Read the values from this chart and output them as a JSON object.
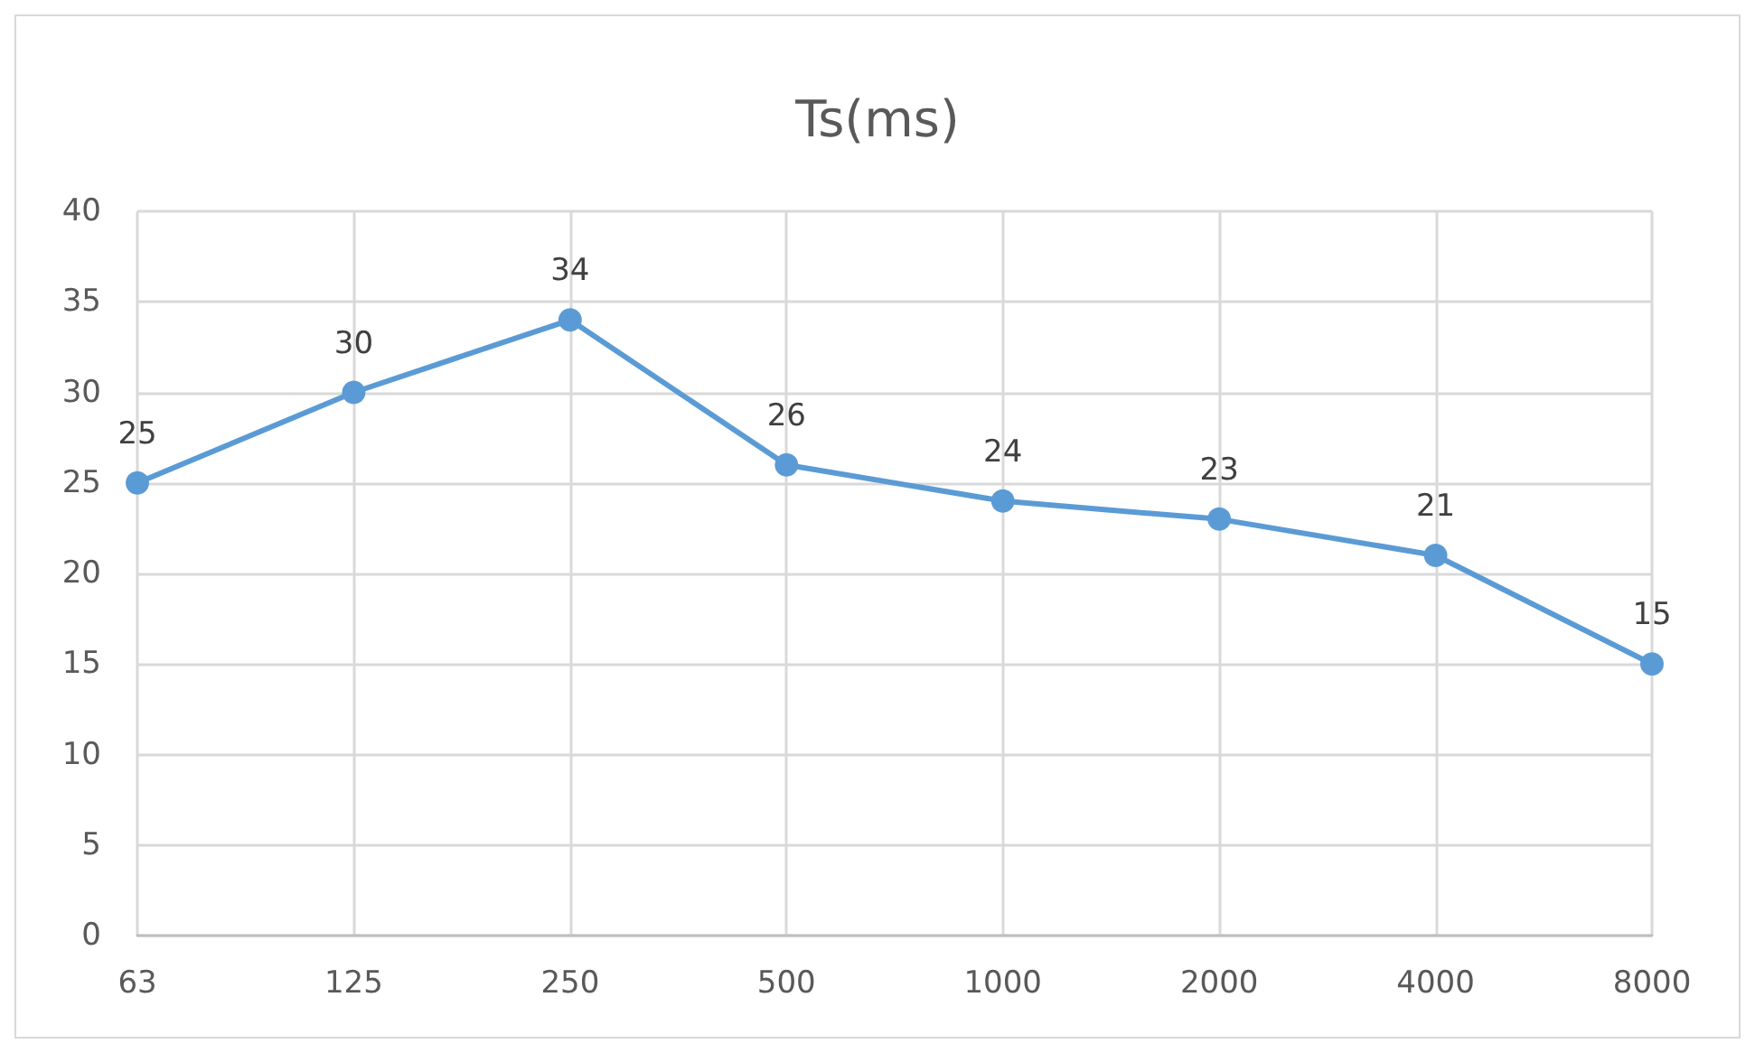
{
  "chart_data": {
    "type": "line",
    "title": "Ts(ms)",
    "categories": [
      "63",
      "125",
      "250",
      "500",
      "1000",
      "2000",
      "4000",
      "8000"
    ],
    "values": [
      25,
      30,
      34,
      26,
      24,
      23,
      21,
      15
    ],
    "color": "#5b9bd5",
    "ylim": [
      0,
      40
    ],
    "yticks": [
      0,
      5,
      10,
      15,
      20,
      25,
      30,
      35,
      40
    ],
    "grid": true,
    "marker": "circle",
    "line_style": "solid",
    "data_labels": true
  }
}
